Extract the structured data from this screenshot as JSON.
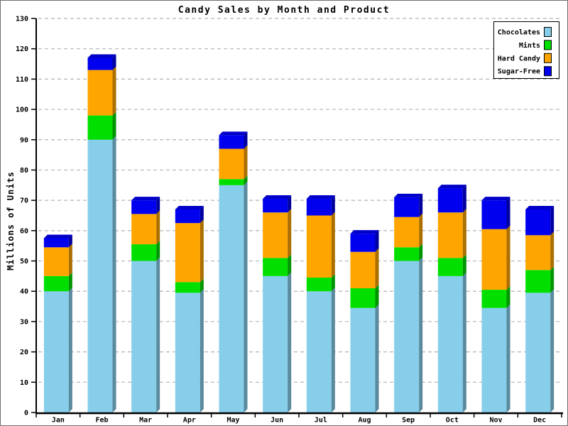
{
  "chart_data": {
    "type": "bar",
    "variant": "stacked-pseudo-3d",
    "title": "Candy Sales by Month and Product",
    "ylabel": "Millions of Units",
    "xlabel": "",
    "categories": [
      "Jan",
      "Feb",
      "Mar",
      "Apr",
      "May",
      "Jun",
      "Jul",
      "Aug",
      "Sep",
      "Oct",
      "Nov",
      "Dec"
    ],
    "series": [
      {
        "name": "Chocolates",
        "color": "#87CEEB",
        "values": [
          40,
          90,
          50,
          39.5,
          75,
          45,
          40,
          34.5,
          50,
          45,
          34.5,
          39.5
        ]
      },
      {
        "name": "Mints",
        "color": "#00DF00",
        "values": [
          5,
          8,
          5.5,
          3.5,
          2,
          6,
          4.5,
          6.5,
          4.5,
          6,
          6,
          7.5
        ]
      },
      {
        "name": "Hard Candy",
        "color": "#FFA500",
        "values": [
          9.5,
          15,
          10,
          19.5,
          10,
          15,
          20.5,
          12,
          10,
          15,
          20,
          11.5
        ]
      },
      {
        "name": "Sugar-Free",
        "color": "#0000EE",
        "values": [
          3,
          4,
          4.5,
          4.5,
          4.5,
          4.5,
          5.5,
          6,
          6.5,
          8,
          9.5,
          8.5
        ]
      }
    ],
    "stack_totals": [
      57.5,
      117,
      70,
      67,
      91.5,
      70.5,
      70.5,
      59,
      71,
      74,
      70,
      67
    ],
    "ylim": [
      0,
      130
    ],
    "ytick_step": 10,
    "yticks": [
      0,
      10,
      20,
      30,
      40,
      50,
      60,
      70,
      80,
      90,
      100,
      110,
      120,
      130
    ],
    "grid": "horizontal-dashed",
    "grid_color": "#b3b3b3",
    "axis_color": "#000000",
    "text_color": "#000000",
    "background_color": "#ffffff",
    "frame_border_color": "#6e6e6e",
    "legend": {
      "position": "top-right",
      "items": [
        "Chocolates",
        "Mints",
        "Hard Candy",
        "Sugar-Free"
      ]
    }
  }
}
